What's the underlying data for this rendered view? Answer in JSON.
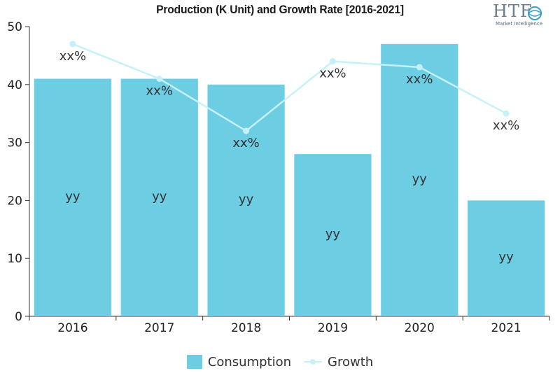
{
  "chart_data": {
    "type": "bar",
    "title": "Production (K Unit) and Growth Rate [2016-2021]",
    "categories": [
      "2016",
      "2017",
      "2018",
      "2019",
      "2020",
      "2021"
    ],
    "ylim": [
      0,
      50
    ],
    "yticks": [
      0,
      10,
      20,
      30,
      40,
      50
    ],
    "grid": false,
    "legend_position": "bottom",
    "series": [
      {
        "name": "Consumption",
        "type": "bar",
        "color": "#6ccde3",
        "values": [
          41,
          41,
          40,
          28,
          47,
          20
        ],
        "labels": [
          "yy",
          "yy",
          "yy",
          "yy",
          "yy",
          "yy"
        ]
      },
      {
        "name": "Growth",
        "type": "line",
        "color": "#c6f1f8",
        "values": [
          47,
          41,
          32,
          44,
          43,
          35
        ],
        "labels": [
          "xx%",
          "xx%",
          "xx%",
          "xx%",
          "xx%",
          "xx%"
        ]
      }
    ]
  },
  "logo": {
    "text": "HTF",
    "subtext": "Market Intelligence"
  }
}
